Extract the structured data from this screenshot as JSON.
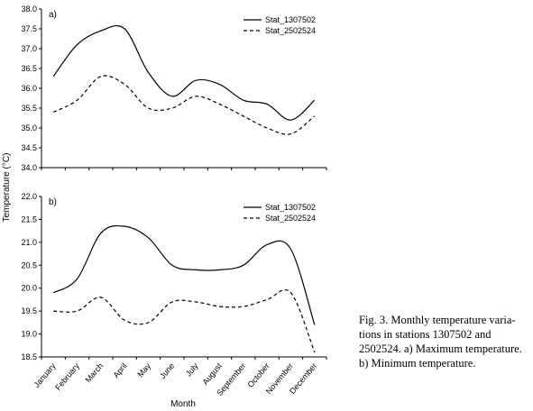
{
  "figure": {
    "ylabel": "Temperature (°C)",
    "xlabel": "Month",
    "caption_lines": [
      "Fig. 3. Monthly temperature varia-",
      "tions in stations 1307502 and",
      "2502524. a) Maximum temperature.",
      "b) Minimum temperature."
    ]
  },
  "chart_data": [
    {
      "type": "line",
      "panel_label": "a)",
      "categories": [
        "January",
        "February",
        "March",
        "April",
        "May",
        "June",
        "July",
        "August",
        "September",
        "October",
        "November",
        "December"
      ],
      "ylim": [
        34.0,
        38.0
      ],
      "yticks": [
        "34.0",
        "34.5",
        "35.0",
        "35.5",
        "36.0",
        "36.5",
        "37.0",
        "37.5",
        "38.0"
      ],
      "legend_position": "top-right",
      "series": [
        {
          "name": "Stat_1307502",
          "style": "solid",
          "color": "#000000",
          "values": [
            36.3,
            37.1,
            37.45,
            37.5,
            36.4,
            35.8,
            36.2,
            36.1,
            35.7,
            35.6,
            35.2,
            35.7
          ]
        },
        {
          "name": "Stat_2502524",
          "style": "dashed",
          "color": "#000000",
          "values": [
            35.4,
            35.7,
            36.3,
            36.1,
            35.5,
            35.5,
            35.8,
            35.6,
            35.3,
            35.0,
            34.85,
            35.3
          ]
        }
      ]
    },
    {
      "type": "line",
      "panel_label": "b)",
      "categories": [
        "January",
        "February",
        "March",
        "April",
        "May",
        "June",
        "July",
        "August",
        "September",
        "October",
        "November",
        "December"
      ],
      "ylim": [
        18.5,
        22.0
      ],
      "yticks": [
        "18.5",
        "19.0",
        "19.5",
        "20.0",
        "20.5",
        "21.0",
        "21.5",
        "22.0"
      ],
      "legend_position": "top-right",
      "series": [
        {
          "name": "Stat_1307502",
          "style": "solid",
          "color": "#000000",
          "values": [
            19.9,
            20.2,
            21.2,
            21.35,
            21.1,
            20.5,
            20.4,
            20.4,
            20.5,
            20.95,
            20.85,
            19.2
          ]
        },
        {
          "name": "Stat_2502524",
          "style": "dashed",
          "color": "#000000",
          "values": [
            19.5,
            19.5,
            19.8,
            19.3,
            19.25,
            19.7,
            19.7,
            19.6,
            19.6,
            19.75,
            19.9,
            18.6
          ]
        }
      ]
    }
  ]
}
